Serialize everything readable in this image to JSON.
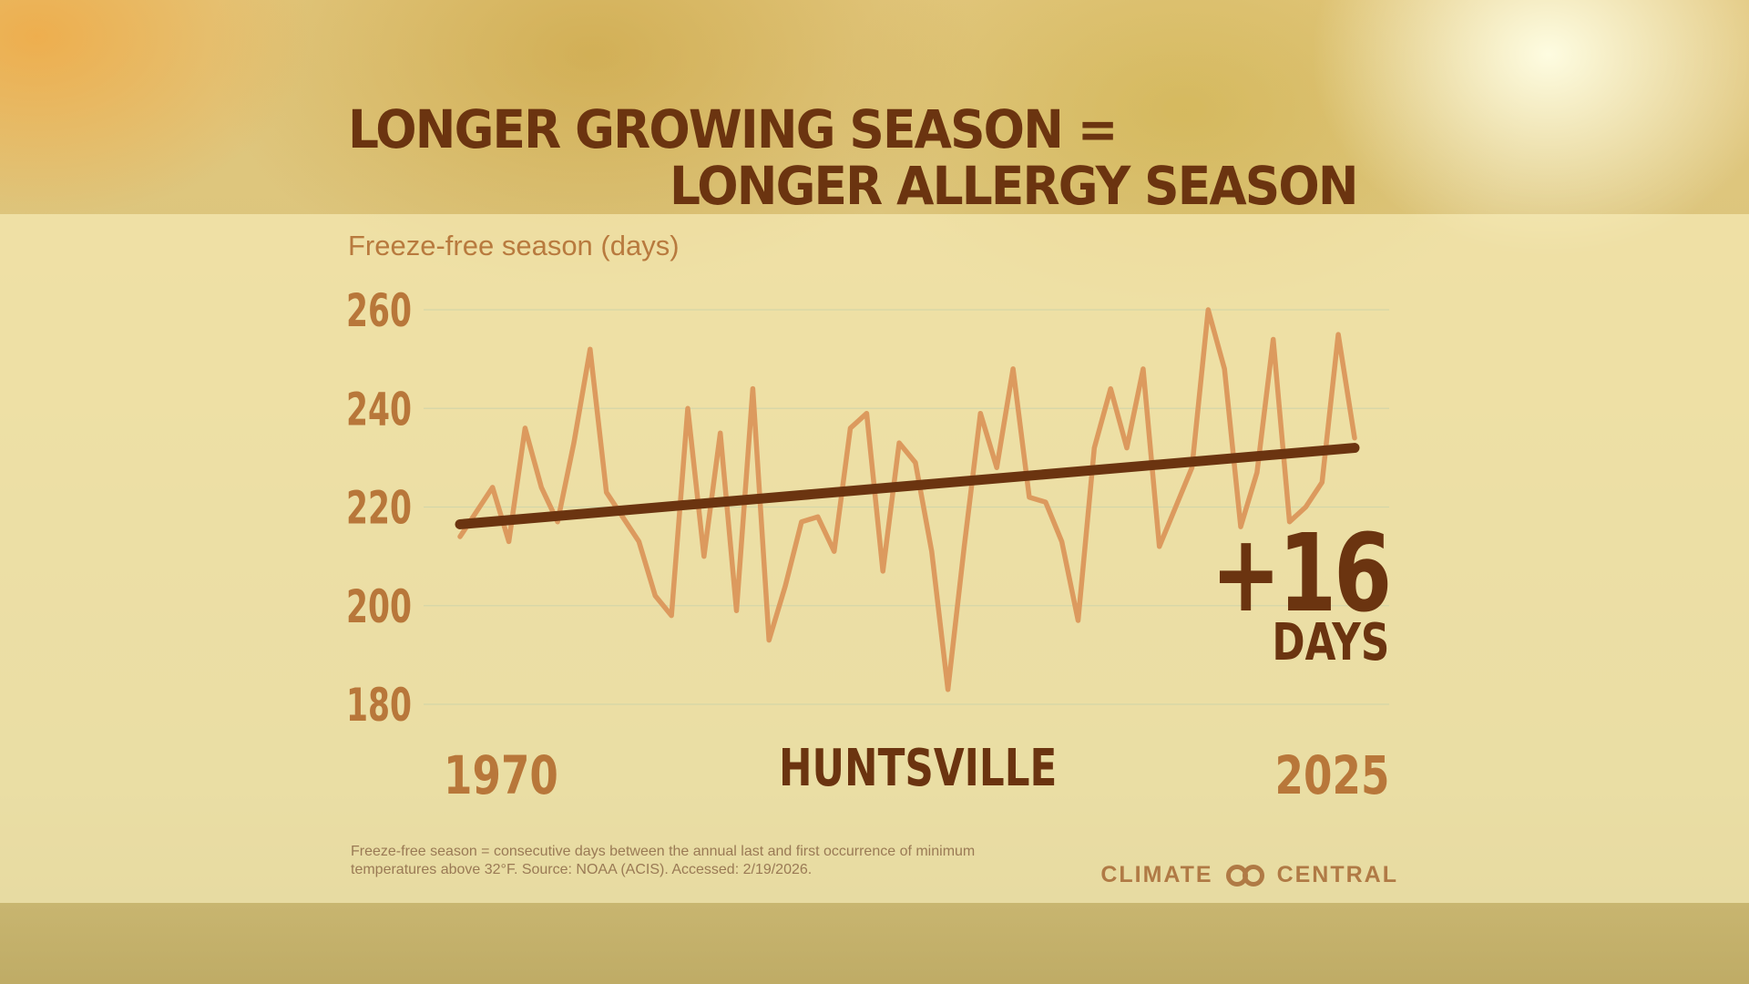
{
  "header": {
    "title_line1": "LONGER GROWING SEASON =",
    "title_line2": "LONGER ALLERGY SEASON"
  },
  "chart_data": {
    "type": "line",
    "title": "LONGER GROWING SEASON = LONGER ALLERGY SEASON",
    "ylabel": "Freeze-free season (days)",
    "xlabel": "",
    "location": "HUNTSVILLE",
    "ylim": [
      180,
      260
    ],
    "yticks": [
      180,
      200,
      220,
      240,
      260
    ],
    "xlim": [
      1970,
      2025
    ],
    "xtick_labels": [
      "1970",
      "2025"
    ],
    "grid": true,
    "x": [
      1970,
      1971,
      1972,
      1973,
      1974,
      1975,
      1976,
      1977,
      1978,
      1979,
      1980,
      1981,
      1982,
      1983,
      1984,
      1985,
      1986,
      1987,
      1988,
      1989,
      1990,
      1991,
      1992,
      1993,
      1994,
      1995,
      1996,
      1997,
      1998,
      1999,
      2000,
      2001,
      2002,
      2003,
      2004,
      2005,
      2006,
      2007,
      2008,
      2009,
      2010,
      2011,
      2012,
      2013,
      2014,
      2015,
      2016,
      2017,
      2018,
      2019,
      2020,
      2021,
      2022,
      2023,
      2024,
      2025
    ],
    "series": [
      {
        "values": [
          214,
          219,
          224,
          213,
          236,
          224,
          217,
          233,
          252,
          223,
          218,
          213,
          202,
          198,
          240,
          210,
          235,
          199,
          244,
          193,
          204,
          217,
          218,
          211,
          236,
          239,
          207,
          233,
          229,
          211,
          183,
          212,
          239,
          228,
          248,
          222,
          221,
          213,
          197,
          232,
          244,
          232,
          248,
          212,
          220,
          228,
          260,
          248,
          216,
          227,
          254,
          217,
          220,
          225,
          255,
          234
        ]
      },
      {
        "type": "trend",
        "x": [
          1970,
          2025
        ],
        "values": [
          216.5,
          232
        ]
      }
    ],
    "annotation": {
      "value": "+16",
      "unit": "DAYS"
    },
    "colors": {
      "data_line": "#dc9a5e",
      "trend_line": "#6b3410",
      "tick_labels": "#b8773a",
      "gridlines": "#d4d6a8"
    }
  },
  "footnote": {
    "line1": "Freeze-free season = consecutive days between the annual last and first occurrence of minimum",
    "line2": "temperatures above 32°F. Source: NOAA (ACIS). Accessed: 2/19/2026."
  },
  "logo": {
    "left": "CLIMATE",
    "right": "CENTRAL"
  }
}
